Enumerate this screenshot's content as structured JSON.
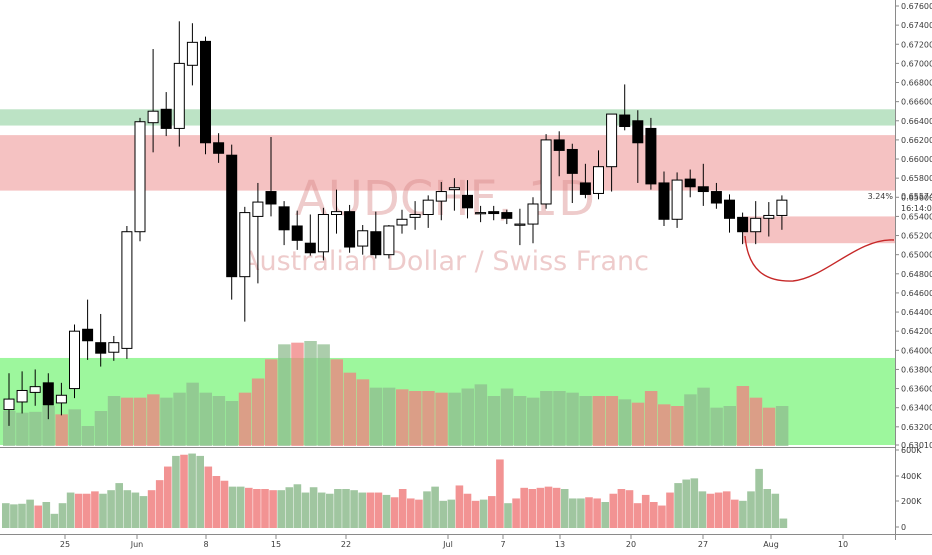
{
  "chart_data": {
    "type": "candlestick",
    "title": "",
    "symbol_watermark": "AUDCHF, 1D",
    "name_watermark": "Australian Dollar / Swiss Franc",
    "colors": {
      "up_body": "#ffffff",
      "down_body": "#000000",
      "wick": "#000000",
      "green_zone": "#8fd19e",
      "red_zone": "#ef9a9a",
      "volume_up": "#8fbc8f",
      "volume_down": "#f08080",
      "volume_overlay": "#4cf04c",
      "projection": "#c62828"
    },
    "price_axis": {
      "range": [
        0.6301,
        0.676
      ],
      "ticks": [
        "0.67600",
        "0.67400",
        "0.67200",
        "0.67000",
        "0.66800",
        "0.66600",
        "0.66400",
        "0.66200",
        "0.66000",
        "0.65800",
        "0.65600",
        "0.65400",
        "0.65200",
        "0.65000",
        "0.64800",
        "0.64600",
        "0.64400",
        "0.64200",
        "0.64000",
        "0.63800",
        "0.63600",
        "0.63400",
        "0.63200",
        "0.63010"
      ],
      "last_price": "0.65574",
      "change_pct": "3.24%",
      "countdown": "16:14:05"
    },
    "volume_axis": {
      "ticks": [
        "600K",
        "400K",
        "200K",
        "0"
      ]
    },
    "x_axis": {
      "labels": [
        "25",
        "Jun",
        "8",
        "15",
        "22",
        "Jul",
        "7",
        "13",
        "20",
        "27",
        "Aug",
        "10"
      ],
      "label_bar_index": [
        2.5,
        7.5,
        12.4,
        17.3,
        22.2,
        27.1,
        32.0,
        36.9,
        41.7,
        46.6,
        51.5,
        56.4
      ]
    },
    "candles": [
      {
        "o": 0.6338,
        "h": 0.6376,
        "l": 0.6321,
        "c": 0.6349
      },
      {
        "o": 0.6346,
        "h": 0.6378,
        "l": 0.6334,
        "c": 0.6358
      },
      {
        "o": 0.6356,
        "h": 0.638,
        "l": 0.6342,
        "c": 0.6362
      },
      {
        "o": 0.6366,
        "h": 0.6376,
        "l": 0.6328,
        "c": 0.6343
      },
      {
        "o": 0.6345,
        "h": 0.6366,
        "l": 0.6332,
        "c": 0.6353
      },
      {
        "o": 0.636,
        "h": 0.6427,
        "l": 0.635,
        "c": 0.642
      },
      {
        "o": 0.6422,
        "h": 0.6453,
        "l": 0.639,
        "c": 0.641
      },
      {
        "o": 0.6408,
        "h": 0.6438,
        "l": 0.6383,
        "c": 0.6397
      },
      {
        "o": 0.6398,
        "h": 0.6415,
        "l": 0.6389,
        "c": 0.6408
      },
      {
        "o": 0.6402,
        "h": 0.653,
        "l": 0.6391,
        "c": 0.6524
      },
      {
        "o": 0.6524,
        "h": 0.6643,
        "l": 0.6514,
        "c": 0.6639
      },
      {
        "o": 0.6638,
        "h": 0.6715,
        "l": 0.6607,
        "c": 0.665
      },
      {
        "o": 0.6652,
        "h": 0.667,
        "l": 0.6624,
        "c": 0.6632
      },
      {
        "o": 0.6632,
        "h": 0.6744,
        "l": 0.6613,
        "c": 0.67
      },
      {
        "o": 0.6698,
        "h": 0.6742,
        "l": 0.6677,
        "c": 0.6722
      },
      {
        "o": 0.6723,
        "h": 0.6728,
        "l": 0.6605,
        "c": 0.6617
      },
      {
        "o": 0.6617,
        "h": 0.6627,
        "l": 0.6596,
        "c": 0.6606
      },
      {
        "o": 0.6604,
        "h": 0.6615,
        "l": 0.6453,
        "c": 0.6477
      },
      {
        "o": 0.6477,
        "h": 0.655,
        "l": 0.643,
        "c": 0.6544
      },
      {
        "o": 0.654,
        "h": 0.6575,
        "l": 0.647,
        "c": 0.6555
      },
      {
        "o": 0.6566,
        "h": 0.6623,
        "l": 0.654,
        "c": 0.6553
      },
      {
        "o": 0.655,
        "h": 0.6556,
        "l": 0.651,
        "c": 0.6526
      },
      {
        "o": 0.653,
        "h": 0.6546,
        "l": 0.6505,
        "c": 0.6515
      },
      {
        "o": 0.6512,
        "h": 0.6542,
        "l": 0.6499,
        "c": 0.6502
      },
      {
        "o": 0.6503,
        "h": 0.6549,
        "l": 0.6494,
        "c": 0.6542
      },
      {
        "o": 0.6542,
        "h": 0.6568,
        "l": 0.6522,
        "c": 0.6545
      },
      {
        "o": 0.6545,
        "h": 0.6552,
        "l": 0.6502,
        "c": 0.6508
      },
      {
        "o": 0.6509,
        "h": 0.6531,
        "l": 0.65,
        "c": 0.6525
      },
      {
        "o": 0.6524,
        "h": 0.6545,
        "l": 0.6496,
        "c": 0.65
      },
      {
        "o": 0.65,
        "h": 0.6531,
        "l": 0.6496,
        "c": 0.653
      },
      {
        "o": 0.6531,
        "h": 0.6547,
        "l": 0.6522,
        "c": 0.6537
      },
      {
        "o": 0.6539,
        "h": 0.6556,
        "l": 0.6526,
        "c": 0.6542
      },
      {
        "o": 0.6542,
        "h": 0.6562,
        "l": 0.6528,
        "c": 0.6557
      },
      {
        "o": 0.6556,
        "h": 0.6576,
        "l": 0.6536,
        "c": 0.6566
      },
      {
        "o": 0.6568,
        "h": 0.658,
        "l": 0.6546,
        "c": 0.657
      },
      {
        "o": 0.6562,
        "h": 0.6578,
        "l": 0.6538,
        "c": 0.6549
      },
      {
        "o": 0.6544,
        "h": 0.6551,
        "l": 0.6534,
        "c": 0.6544
      },
      {
        "o": 0.6545,
        "h": 0.6551,
        "l": 0.6536,
        "c": 0.6543
      },
      {
        "o": 0.6544,
        "h": 0.6547,
        "l": 0.6532,
        "c": 0.6538
      },
      {
        "o": 0.6531,
        "h": 0.6548,
        "l": 0.651,
        "c": 0.6532
      },
      {
        "o": 0.6532,
        "h": 0.656,
        "l": 0.6512,
        "c": 0.6553
      },
      {
        "o": 0.6553,
        "h": 0.6626,
        "l": 0.6548,
        "c": 0.662
      },
      {
        "o": 0.662,
        "h": 0.6629,
        "l": 0.6582,
        "c": 0.6609
      },
      {
        "o": 0.661,
        "h": 0.6616,
        "l": 0.6554,
        "c": 0.6585
      },
      {
        "o": 0.6575,
        "h": 0.6595,
        "l": 0.6559,
        "c": 0.6563
      },
      {
        "o": 0.6564,
        "h": 0.6609,
        "l": 0.6558,
        "c": 0.6592
      },
      {
        "o": 0.6592,
        "h": 0.6647,
        "l": 0.6566,
        "c": 0.6647
      },
      {
        "o": 0.6646,
        "h": 0.6678,
        "l": 0.663,
        "c": 0.6634
      },
      {
        "o": 0.664,
        "h": 0.6651,
        "l": 0.6575,
        "c": 0.6617
      },
      {
        "o": 0.6632,
        "h": 0.6643,
        "l": 0.6568,
        "c": 0.6574
      },
      {
        "o": 0.6575,
        "h": 0.6587,
        "l": 0.653,
        "c": 0.6537
      },
      {
        "o": 0.6537,
        "h": 0.6586,
        "l": 0.6528,
        "c": 0.6578
      },
      {
        "o": 0.6579,
        "h": 0.6589,
        "l": 0.656,
        "c": 0.6571
      },
      {
        "o": 0.6571,
        "h": 0.6595,
        "l": 0.6551,
        "c": 0.6566
      },
      {
        "o": 0.6566,
        "h": 0.6575,
        "l": 0.6548,
        "c": 0.6554
      },
      {
        "o": 0.6557,
        "h": 0.6563,
        "l": 0.6523,
        "c": 0.6538
      },
      {
        "o": 0.6539,
        "h": 0.6544,
        "l": 0.6511,
        "c": 0.6524
      },
      {
        "o": 0.6524,
        "h": 0.6556,
        "l": 0.6511,
        "c": 0.6538
      },
      {
        "o": 0.6538,
        "h": 0.6555,
        "l": 0.6519,
        "c": 0.6541
      },
      {
        "o": 0.6541,
        "h": 0.6562,
        "l": 0.6526,
        "c": 0.6557
      }
    ],
    "volume": {
      "values": [
        210,
        200,
        205,
        240,
        190,
        220,
        120,
        210,
        300,
        290,
        290,
        310,
        290,
        320,
        380,
        320,
        300,
        270,
        320,
        405,
        520,
        610,
        620,
        630,
        610,
        520,
        440,
        400,
        350,
        350,
        340,
        330,
        330,
        320,
        320,
        345,
        370,
        300,
        345,
        300,
        290,
        330,
        330,
        320,
        300,
        300,
        300,
        280,
        260,
        330,
        250,
        240,
        310,
        350,
        230,
        240,
        360,
        290,
        230,
        240,
        270,
        580,
        210,
        250,
        340,
        330,
        340,
        350,
        340,
        330,
        250,
        250,
        260,
        250,
        220,
        290,
        330,
        320,
        210,
        280,
        220,
        190,
        300,
        380,
        410,
        420,
        310,
        290,
        300,
        310,
        240,
        230,
        310,
        500,
        330,
        290,
        80
      ],
      "colors": [
        "up",
        "up",
        "up",
        "up",
        "down",
        "up",
        "up",
        "up",
        "up",
        "down",
        "down",
        "down",
        "up",
        "up",
        "up",
        "up",
        "up",
        "up",
        "down",
        "down",
        "down",
        "up",
        "down",
        "up",
        "up",
        "down",
        "down",
        "down",
        "up",
        "up",
        "down",
        "down",
        "down",
        "down",
        "up",
        "up",
        "up",
        "up",
        "up",
        "up",
        "up",
        "up",
        "up",
        "up",
        "up",
        "down",
        "down",
        "up",
        "down",
        "down",
        "down",
        "down",
        "up",
        "up",
        "up",
        "up",
        "down",
        "down",
        "down",
        "up",
        "down",
        "down",
        "up",
        "down",
        "down",
        "down",
        "down",
        "down",
        "down",
        "up",
        "up",
        "up",
        "down",
        "down",
        "up",
        "down",
        "down",
        "down",
        "down",
        "down",
        "down",
        "down",
        "down",
        "up",
        "up",
        "up",
        "up",
        "down",
        "down",
        "down",
        "down",
        "up",
        "up",
        "up",
        "up",
        "up",
        "up"
      ]
    },
    "zones": [
      {
        "kind": "resistance",
        "color": "green",
        "from": 0.6652,
        "to": 0.6635
      },
      {
        "kind": "supply",
        "color": "red",
        "from": 0.6625,
        "to": 0.6567
      },
      {
        "kind": "demand",
        "color": "red",
        "from": 0.654,
        "to": 0.6512
      },
      {
        "kind": "volume_band",
        "color": "green",
        "from": 0.6392,
        "to": 0.6301
      }
    ]
  }
}
